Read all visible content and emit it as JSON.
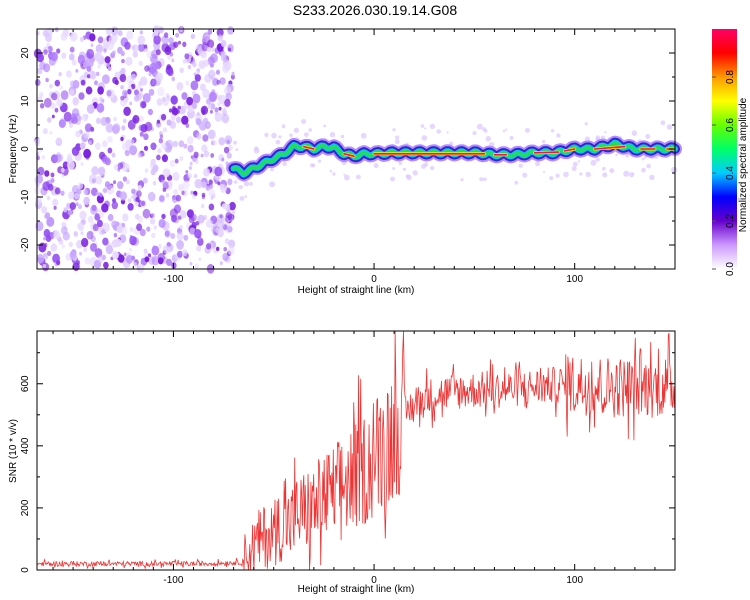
{
  "page": {
    "title": "S233.2026.030.19.14.G08"
  },
  "chart_data": [
    {
      "type": "heatmap",
      "name": "spectrogram",
      "xlabel": "Height of straight line (km)",
      "ylabel": "Frequency (Hz)",
      "xlim": [
        -168,
        150
      ],
      "ylim": [
        -25,
        25
      ],
      "xticks": [
        -100,
        0,
        100
      ],
      "yticks": [
        -20,
        -10,
        0,
        10,
        20
      ],
      "noise_region": [
        -168,
        -70
      ],
      "signal_ridge": {
        "x": [
          -70,
          -65,
          -60,
          -55,
          -50,
          -45,
          -40,
          -35,
          -30,
          -25,
          -20,
          -15,
          -10,
          -5,
          0,
          10,
          20,
          30,
          40,
          50,
          60,
          70,
          80,
          90,
          100,
          110,
          120,
          130,
          140,
          150
        ],
        "freq": [
          -4,
          -5,
          -4,
          -3,
          -2,
          -1,
          0.5,
          0.5,
          0,
          0.5,
          0.3,
          -1,
          -1.5,
          -1,
          -1,
          -0.8,
          -0.8,
          -0.8,
          -0.8,
          -0.8,
          -1.2,
          -1.2,
          -0.8,
          -0.8,
          0,
          0,
          1,
          0,
          0,
          0
        ]
      },
      "colorbar": {
        "label": "Normalized spectral amplitude",
        "ticks": [
          0.0,
          0.2,
          0.4,
          0.6,
          0.8
        ],
        "range": [
          0,
          1
        ],
        "colors": [
          "#ffffff",
          "#cc99ff",
          "#6600cc",
          "#0000ff",
          "#00ccff",
          "#00ff66",
          "#66ff00",
          "#ffff00",
          "#ff9900",
          "#ff0000",
          "#ff0066"
        ]
      }
    },
    {
      "type": "line",
      "name": "snr",
      "xlabel": "Height of straight line (km)",
      "ylabel": "SNR (10 * v/v)",
      "xlim": [
        -168,
        150
      ],
      "ylim": [
        0,
        770
      ],
      "xticks": [
        -100,
        0,
        100
      ],
      "yticks": [
        0,
        200,
        400,
        600
      ],
      "series": [
        {
          "name": "SNR",
          "color": "#ee3333",
          "x": [
            -168,
            -150,
            -130,
            -110,
            -90,
            -75,
            -66,
            -62,
            -58,
            -54,
            -50,
            -46,
            -42,
            -38,
            -34,
            -30,
            -26,
            -22,
            -18,
            -14,
            -10,
            -6,
            -2,
            2,
            6,
            10,
            14,
            18,
            22,
            26,
            30,
            40,
            50,
            60,
            70,
            80,
            90,
            100,
            110,
            120,
            130,
            140,
            150
          ],
          "values": [
            20,
            20,
            20,
            20,
            20,
            22,
            25,
            60,
            90,
            110,
            120,
            150,
            150,
            180,
            190,
            200,
            230,
            240,
            260,
            280,
            300,
            320,
            340,
            380,
            410,
            450,
            490,
            520,
            540,
            555,
            565,
            575,
            580,
            580,
            585,
            590,
            595,
            600,
            595,
            590,
            590,
            590,
            595
          ]
        }
      ]
    }
  ]
}
